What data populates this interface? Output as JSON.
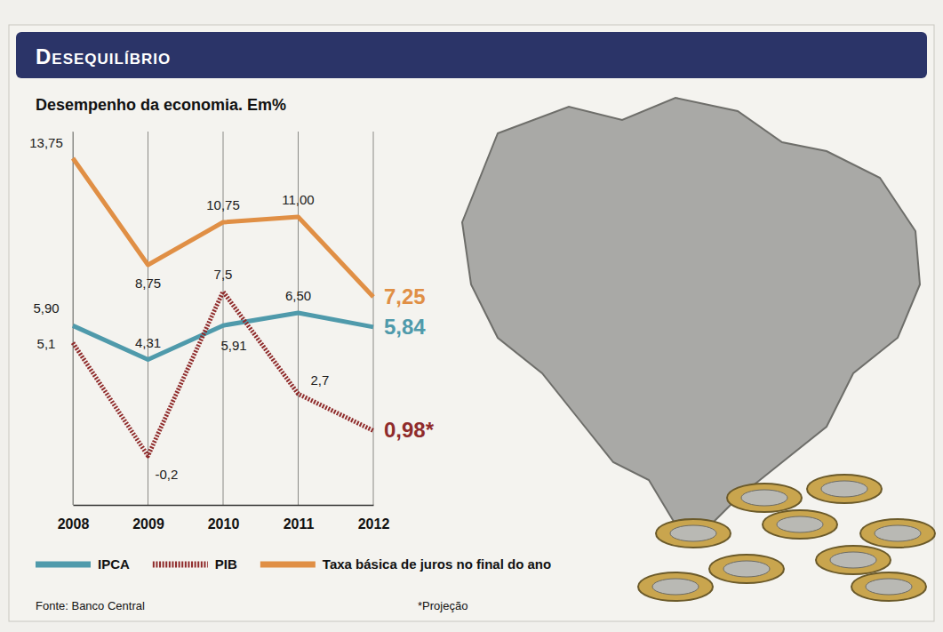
{
  "chart_data": {
    "type": "line",
    "title": "Desequilíbrio",
    "subtitle": "Desempenho da economia. Em%",
    "categories": [
      "2008",
      "2009",
      "2010",
      "2011",
      "2012"
    ],
    "series": [
      {
        "name": "IPCA",
        "color": "#4f9aab",
        "values": [
          5.9,
          4.31,
          5.91,
          6.5,
          5.84
        ],
        "value_labels": [
          "5,90",
          "4,31",
          "5,91",
          "6,50",
          "5,84"
        ]
      },
      {
        "name": "PIB",
        "color": "#8f2b2b",
        "line_style": "hatched",
        "values": [
          5.1,
          -0.2,
          7.5,
          2.7,
          0.98
        ],
        "value_labels": [
          "5,1",
          "-0,2",
          "7,5",
          "2,7",
          "0,98*"
        ]
      },
      {
        "name": "Taxa básica de juros no final do ano",
        "color": "#e08f45",
        "values": [
          13.75,
          8.75,
          10.75,
          11,
          7.25
        ],
        "value_labels": [
          "13,75",
          "8,75",
          "10,75",
          "11,00",
          "7,25"
        ]
      }
    ],
    "ylim": [
      -2.5,
      15
    ],
    "grid": true,
    "legend": "bottom",
    "data_labels": true,
    "tick_labels": "x",
    "annotations": [
      "Fonte: Banco Central",
      "*Projeção"
    ]
  }
}
